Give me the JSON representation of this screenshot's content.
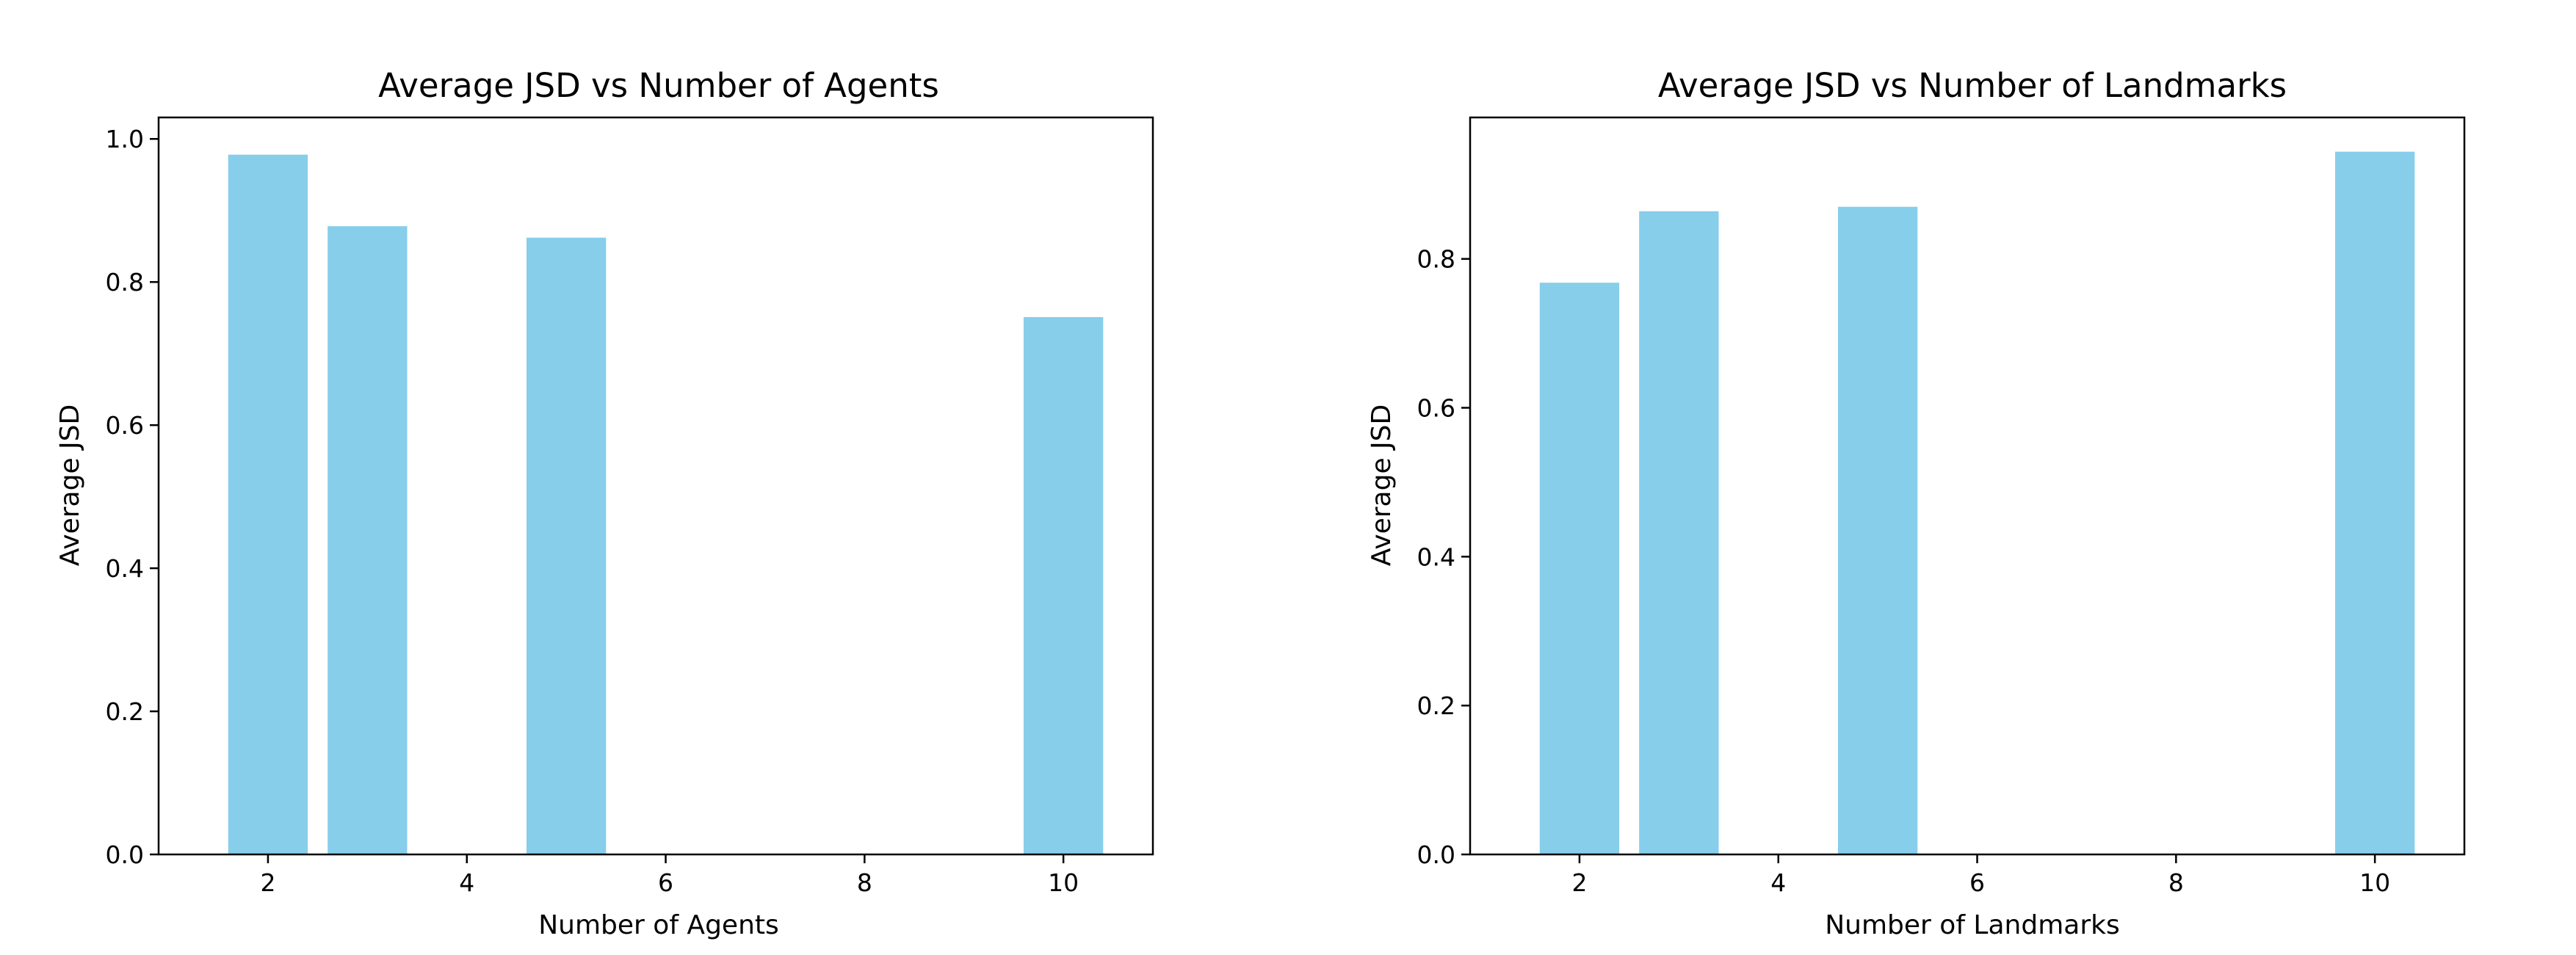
{
  "chart_data": [
    {
      "type": "bar",
      "title": "Average JSD vs Number of Agents",
      "xlabel": "Number of Agents",
      "ylabel": "Average JSD",
      "x": [
        2,
        3,
        5,
        10
      ],
      "values": [
        0.978,
        0.878,
        0.862,
        0.751
      ],
      "xlim": [
        0.9,
        10.9
      ],
      "ylim": [
        0,
        1.03
      ],
      "xticks": [
        2,
        4,
        6,
        8,
        10
      ],
      "yticks": [
        0.0,
        0.2,
        0.4,
        0.6,
        0.8,
        1.0
      ],
      "bar_color": "#87CEEB",
      "grid": false
    },
    {
      "type": "bar",
      "title": "Average JSD vs Number of Landmarks",
      "xlabel": "Number of Landmarks",
      "ylabel": "Average JSD",
      "x": [
        2,
        3,
        5,
        10
      ],
      "values": [
        0.768,
        0.864,
        0.87,
        0.944
      ],
      "xlim": [
        0.9,
        10.9
      ],
      "ylim": [
        0,
        0.99
      ],
      "xticks": [
        2,
        4,
        6,
        8,
        10
      ],
      "yticks": [
        0.0,
        0.2,
        0.4,
        0.6,
        0.8
      ],
      "bar_color": "#87CEEB",
      "grid": false
    }
  ]
}
